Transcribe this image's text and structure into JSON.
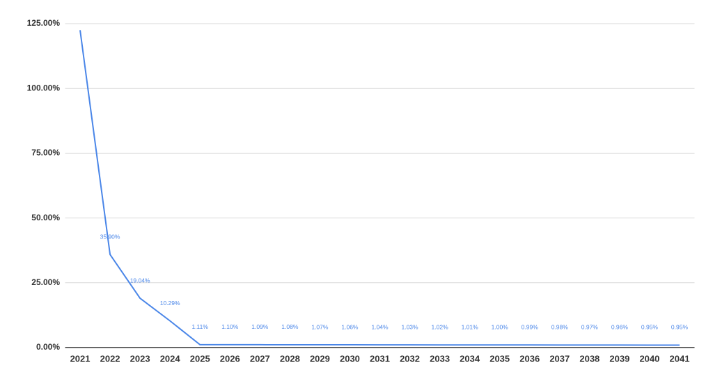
{
  "chart_data": {
    "type": "line",
    "categories": [
      "2021",
      "2022",
      "2023",
      "2024",
      "2025",
      "2026",
      "2027",
      "2028",
      "2029",
      "2030",
      "2031",
      "2032",
      "2033",
      "2034",
      "2035",
      "2036",
      "2037",
      "2038",
      "2039",
      "2040",
      "2041"
    ],
    "series": [
      {
        "color": "#4a86e8",
        "values": [
          122.5,
          35.9,
          19.04,
          10.29,
          1.11,
          1.1,
          1.09,
          1.08,
          1.07,
          1.06,
          1.04,
          1.03,
          1.02,
          1.01,
          1.0,
          0.99,
          0.98,
          0.97,
          0.96,
          0.95,
          0.95
        ],
        "value_labels": [
          null,
          "35.90%",
          "19.04%",
          "10.29%",
          "1.11%",
          "1.10%",
          "1.09%",
          "1.08%",
          "1.07%",
          "1.06%",
          "1.04%",
          "1.03%",
          "1.02%",
          "1.01%",
          "1.00%",
          "0.99%",
          "0.98%",
          "0.97%",
          "0.96%",
          "0.95%",
          "0.95%"
        ]
      }
    ],
    "ylim": [
      0,
      125
    ],
    "yticks": [
      {
        "value": 0,
        "label": "0.00%"
      },
      {
        "value": 25,
        "label": "25.00%"
      },
      {
        "value": 50,
        "label": "50.00%"
      },
      {
        "value": 75,
        "label": "75.00%"
      },
      {
        "value": 100,
        "label": "100.00%"
      },
      {
        "value": 125,
        "label": "125.00%"
      }
    ],
    "grid": true
  }
}
